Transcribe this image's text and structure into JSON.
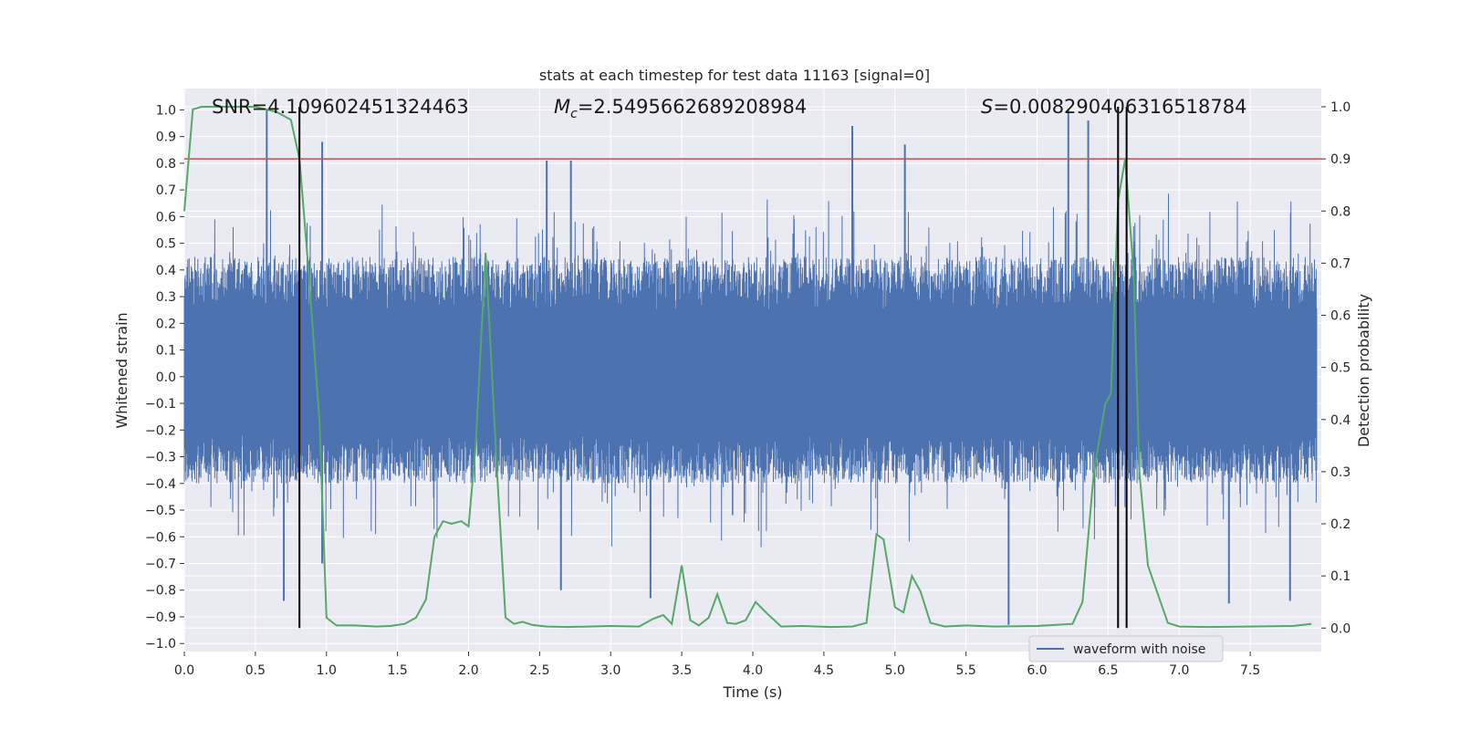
{
  "chart_data": {
    "type": "line",
    "title": "stats at each timestep for test data 11163 [signal=0]",
    "xlabel": "Time (s)",
    "ylabel": "Whitened strain",
    "y2label": "Detection probability",
    "xlim": [
      0.0,
      8.0
    ],
    "ylim": [
      -1.03,
      1.08
    ],
    "y2lim": [
      -0.045,
      1.035
    ],
    "x_ticks": [
      "0.0",
      "0.5",
      "1.0",
      "1.5",
      "2.0",
      "2.5",
      "3.0",
      "3.5",
      "4.0",
      "4.5",
      "5.0",
      "5.5",
      "6.0",
      "6.5",
      "7.0",
      "7.5"
    ],
    "y_ticks": [
      "1.0",
      "0.9",
      "0.8",
      "0.7",
      "0.6",
      "0.5",
      "0.4",
      "0.3",
      "0.2",
      "0.1",
      "0.0",
      "−0.1",
      "−0.2",
      "−0.3",
      "−0.4",
      "−0.5",
      "−0.6",
      "−0.7",
      "−0.8",
      "−0.9",
      "−1.0"
    ],
    "y2_ticks": [
      "1.0",
      "0.9",
      "0.8",
      "0.7",
      "0.6",
      "0.5",
      "0.4",
      "0.3",
      "0.2",
      "0.1",
      "0.0"
    ],
    "grid": true,
    "legend_placement": "lower-right",
    "colors": {
      "waveform": "#4c72b0",
      "probability": "#55a868",
      "threshold": "#c44e52",
      "markers": "#000000",
      "background": "#eaeaf2",
      "grid": "#ffffff"
    },
    "annotations": {
      "snr": "SNR=4.109602451324463",
      "mc_symbol": "M",
      "mc_sub": "c",
      "mc_value": "=2.5495662689208984",
      "s_symbol": "S",
      "s_value": "=0.008290406316518784"
    },
    "series": [
      {
        "name": "waveform with noise",
        "envelope": {
          "typical_band": [
            -0.4,
            0.45
          ],
          "peaks_max": [
            [
              0.58,
              1.0
            ],
            [
              0.97,
              0.88
            ],
            [
              2.55,
              0.81
            ],
            [
              2.72,
              0.81
            ],
            [
              4.7,
              0.94
            ],
            [
              5.07,
              0.87
            ],
            [
              6.22,
              1.0
            ],
            [
              6.36,
              0.96
            ]
          ],
          "peaks_min": [
            [
              0.7,
              -0.84
            ],
            [
              0.97,
              -0.7
            ],
            [
              2.65,
              -0.8
            ],
            [
              3.28,
              -0.83
            ],
            [
              5.8,
              -0.93
            ],
            [
              7.35,
              -0.85
            ],
            [
              7.78,
              -0.84
            ]
          ]
        }
      },
      {
        "name": "detection probability",
        "x": [
          0.0,
          0.06,
          0.12,
          0.3,
          0.5,
          0.65,
          0.75,
          0.81,
          0.87,
          0.95,
          1.0,
          1.07,
          1.2,
          1.35,
          1.45,
          1.55,
          1.63,
          1.7,
          1.76,
          1.82,
          1.88,
          1.95,
          2.0,
          2.05,
          2.12,
          2.2,
          2.26,
          2.32,
          2.38,
          2.45,
          2.55,
          2.7,
          2.85,
          3.0,
          3.2,
          3.3,
          3.37,
          3.43,
          3.5,
          3.56,
          3.62,
          3.69,
          3.75,
          3.82,
          3.88,
          3.95,
          4.02,
          4.1,
          4.2,
          4.35,
          4.55,
          4.7,
          4.8,
          4.87,
          4.92,
          5.0,
          5.06,
          5.12,
          5.18,
          5.25,
          5.35,
          5.5,
          5.7,
          6.0,
          6.25,
          6.32,
          6.4,
          6.48,
          6.52,
          6.57,
          6.62,
          6.68,
          6.72,
          6.78,
          6.85,
          6.92,
          7.0,
          7.2,
          7.5,
          7.8,
          7.93
        ],
        "values": [
          0.8,
          0.995,
          1.0,
          1.0,
          1.0,
          0.99,
          0.975,
          0.9,
          0.7,
          0.4,
          0.02,
          0.005,
          0.005,
          0.003,
          0.004,
          0.008,
          0.02,
          0.055,
          0.175,
          0.205,
          0.2,
          0.205,
          0.195,
          0.35,
          0.72,
          0.3,
          0.02,
          0.008,
          0.012,
          0.006,
          0.003,
          0.002,
          0.003,
          0.004,
          0.003,
          0.018,
          0.025,
          0.008,
          0.12,
          0.015,
          0.005,
          0.02,
          0.065,
          0.01,
          0.008,
          0.015,
          0.05,
          0.028,
          0.003,
          0.004,
          0.002,
          0.003,
          0.01,
          0.18,
          0.17,
          0.04,
          0.03,
          0.1,
          0.07,
          0.01,
          0.003,
          0.005,
          0.003,
          0.004,
          0.008,
          0.05,
          0.3,
          0.43,
          0.45,
          0.82,
          0.9,
          0.68,
          0.3,
          0.12,
          0.065,
          0.01,
          0.003,
          0.002,
          0.003,
          0.004,
          0.008
        ]
      }
    ],
    "threshold_y": 0.9,
    "marker_lines_x": [
      0.81,
      6.57,
      6.63
    ]
  }
}
